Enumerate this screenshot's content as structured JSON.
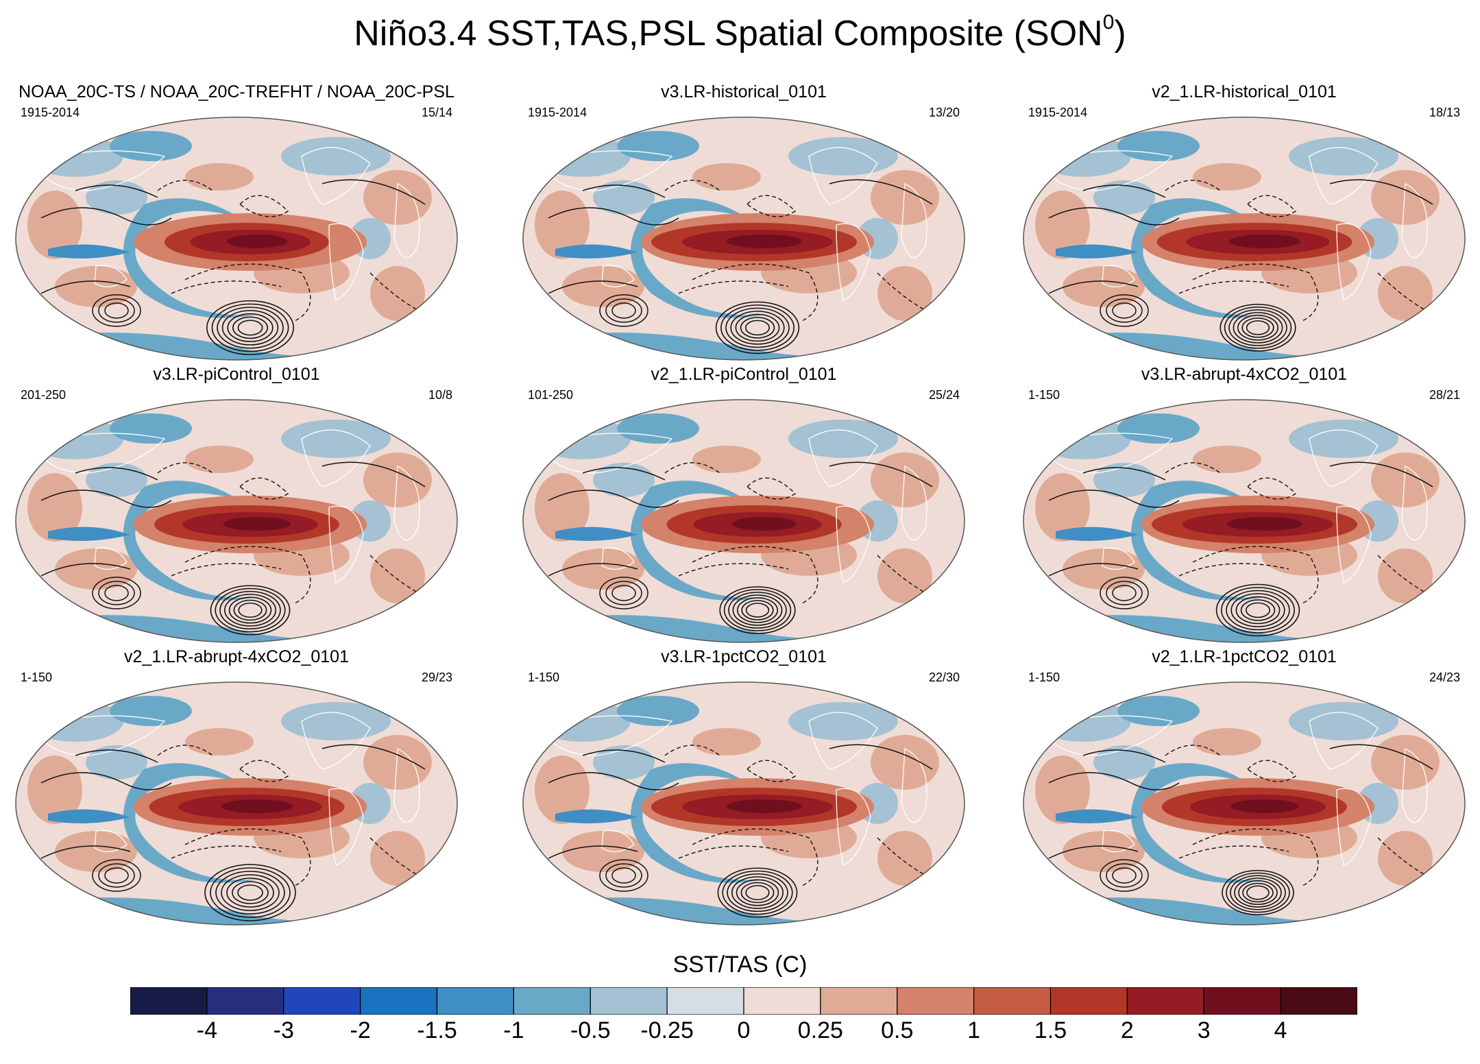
{
  "figure": {
    "title": "Niño3.4 SST,TAS,PSL Spatial Composite (SON",
    "title_superscript": "0",
    "title_close": ")"
  },
  "chart_data": {
    "type": "heatmap",
    "description_kind": "composite maps",
    "panels": [
      {
        "title": "NOAA_20C-TS / NOAA_20C-TREFHT / NOAA_20C-PSL",
        "years": "1915-2014",
        "counts": "15/14",
        "warm_strength": 0.8,
        "south_high": 0.95
      },
      {
        "title": "v3.LR-historical_0101",
        "years": "1915-2014",
        "counts": "13/20",
        "warm_strength": 1.0,
        "south_high": 0.9
      },
      {
        "title": "v2_1.LR-historical_0101",
        "years": "1915-2014",
        "counts": "18/13",
        "warm_strength": 0.95,
        "south_high": 0.8
      },
      {
        "title": "v3.LR-piControl_0101",
        "years": "201-250",
        "counts": "10/8",
        "warm_strength": 0.9,
        "south_high": 0.85
      },
      {
        "title": "v2_1.LR-piControl_0101",
        "years": "101-250",
        "counts": "25/24",
        "warm_strength": 0.85,
        "south_high": 0.8
      },
      {
        "title": "v3.LR-abrupt-4xCO2_0101",
        "years": "1-150",
        "counts": "28/21",
        "warm_strength": 1.0,
        "south_high": 0.9
      },
      {
        "title": "v2_1.LR-abrupt-4xCO2_0101",
        "years": "1-150",
        "counts": "29/23",
        "warm_strength": 0.95,
        "south_high": 1.0
      },
      {
        "title": "v3.LR-1pctCO2_0101",
        "years": "1-150",
        "counts": "22/30",
        "warm_strength": 1.0,
        "south_high": 0.85
      },
      {
        "title": "v2_1.LR-1pctCO2_0101",
        "years": "1-150",
        "counts": "24/23",
        "warm_strength": 0.9,
        "south_high": 0.75
      }
    ],
    "colorbar": {
      "title": "SST/TAS (C)",
      "levels": [
        "-4",
        "-3",
        "-2",
        "-1.5",
        "-1",
        "-0.5",
        "-0.25",
        "0",
        "0.25",
        "0.5",
        "1",
        "1.5",
        "2",
        "3",
        "4"
      ],
      "colors": [
        "#171c47",
        "#26307e",
        "#2146bb",
        "#1a72c2",
        "#3f8fc4",
        "#6aa8c8",
        "#a4c2d3",
        "#d6dde3",
        "#efdcd6",
        "#e0ab96",
        "#d4826a",
        "#c55d45",
        "#b23729",
        "#951b25",
        "#70101f",
        "#4a0a15"
      ]
    }
  }
}
